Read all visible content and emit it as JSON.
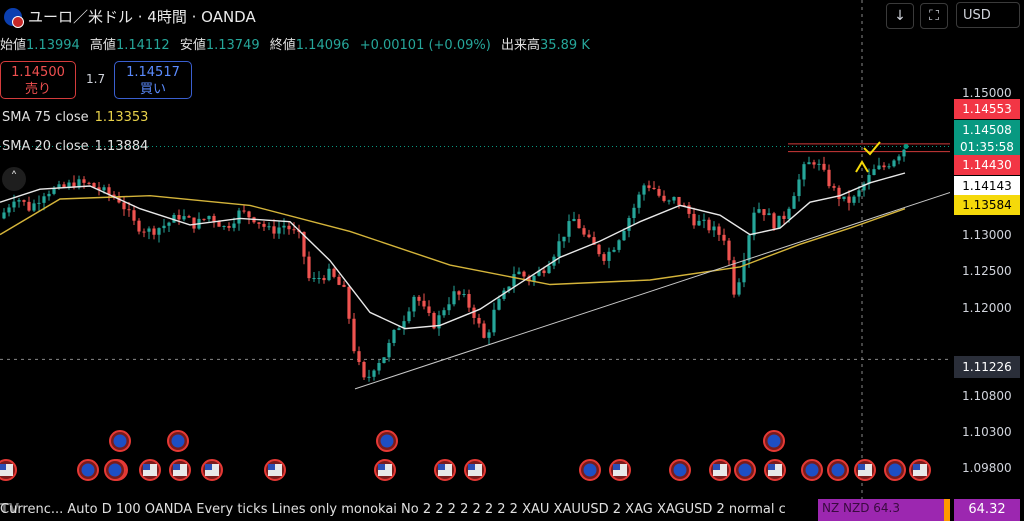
{
  "header": {
    "title": "ユーロ／米ドル · 4時間 · OANDA",
    "ohlc": [
      {
        "label": "始値",
        "value": "1.13994"
      },
      {
        "label": "高値",
        "value": "1.14112"
      },
      {
        "label": "安値",
        "value": "1.13749"
      },
      {
        "label": "終値",
        "value": "1.14096"
      }
    ],
    "change": "+0.00101 (+0.09%)",
    "volume_label": "出来高",
    "volume_value": "35.89 K"
  },
  "trade": {
    "sell_price": "1.14500",
    "sell_label": "売り",
    "spread": "1.7",
    "buy_price": "1.14517",
    "buy_label": "買い"
  },
  "indicators": {
    "sma75_label": "SMA 75 close",
    "sma75_value": "1.13353",
    "sma20_label": "SMA 20 close",
    "sma20_value": "1.13884"
  },
  "toolbar": {
    "down_icon": "arrow-down-icon",
    "fullscreen_icon": "fullscreen-icon",
    "currency": "USD"
  },
  "price_axis": {
    "ticks": [
      "1.15000",
      "1.13000",
      "1.12500",
      "1.12000",
      "1.10800",
      "1.10300",
      "1.09800"
    ],
    "tags": [
      {
        "text": "1.14553",
        "bg": "#f23645",
        "fg": "#ffffff"
      },
      {
        "text": "1.14508",
        "bg": "#089981",
        "fg": "#ffffff"
      },
      {
        "text": "01:35:58",
        "bg": "#089981",
        "fg": "#ffffff"
      },
      {
        "text": "1.14430",
        "bg": "#f23645",
        "fg": "#ffffff"
      },
      {
        "text": "1.14143",
        "bg": "#ffffff",
        "fg": "#000000"
      },
      {
        "text": "1.13584",
        "bg": "#f5d90a",
        "fg": "#000000"
      },
      {
        "text": "1.11226",
        "bg": "#2a2e39",
        "fg": "#ffffff"
      }
    ]
  },
  "bottom_bar": {
    "logo": "TV",
    "text": "Currenc...   Auto D 100 OANDA Every ticks Lines only monokai No 2 2 2 2 2 2 2 2 XAU XAUUSD 2 XAG XAGUSD 2 normal c",
    "overlay_text": "NZ  NZD   64.3",
    "last_value": "64.32"
  },
  "colors": {
    "up": "#26a69a",
    "down": "#ef5350",
    "sma75": "#d4b43a",
    "sma20": "#e8e8e8",
    "trendline": "#c8c8c8",
    "background": "#000000"
  },
  "chart_data": {
    "type": "candlestick",
    "title": "ユーロ／米ドル · 4時間 · OANDA",
    "ylim": [
      1.0955,
      1.1535
    ],
    "y_ticks": [
      1.15,
      1.13,
      1.125,
      1.12,
      1.108,
      1.103,
      1.098
    ],
    "price_path": [
      [
        0,
        1.134
      ],
      [
        15,
        1.1375
      ],
      [
        30,
        1.1355
      ],
      [
        45,
        1.1382
      ],
      [
        60,
        1.1385
      ],
      [
        75,
        1.1395
      ],
      [
        90,
        1.1392
      ],
      [
        105,
        1.138
      ],
      [
        120,
        1.1368
      ],
      [
        135,
        1.133
      ],
      [
        150,
        1.132
      ],
      [
        165,
        1.133
      ],
      [
        180,
        1.1345
      ],
      [
        195,
        1.133
      ],
      [
        210,
        1.1345
      ],
      [
        225,
        1.1325
      ],
      [
        240,
        1.135
      ],
      [
        255,
        1.134
      ],
      [
        270,
        1.132
      ],
      [
        285,
        1.133
      ],
      [
        300,
        1.131
      ],
      [
        310,
        1.124
      ],
      [
        320,
        1.125
      ],
      [
        330,
        1.1255
      ],
      [
        345,
        1.1225
      ],
      [
        355,
        1.113
      ],
      [
        365,
        1.1085
      ],
      [
        375,
        1.1115
      ],
      [
        385,
        1.113
      ],
      [
        395,
        1.1165
      ],
      [
        405,
        1.119
      ],
      [
        415,
        1.1225
      ],
      [
        425,
        1.1195
      ],
      [
        435,
        1.1175
      ],
      [
        445,
        1.1205
      ],
      [
        455,
        1.1225
      ],
      [
        465,
        1.1215
      ],
      [
        475,
        1.119
      ],
      [
        485,
        1.115
      ],
      [
        495,
        1.12
      ],
      [
        505,
        1.1225
      ],
      [
        515,
        1.126
      ],
      [
        530,
        1.1245
      ],
      [
        545,
        1.1265
      ],
      [
        555,
        1.129
      ],
      [
        565,
        1.132
      ],
      [
        575,
        1.134
      ],
      [
        585,
        1.131
      ],
      [
        595,
        1.1295
      ],
      [
        605,
        1.128
      ],
      [
        615,
        1.13
      ],
      [
        625,
        1.133
      ],
      [
        635,
        1.136
      ],
      [
        645,
        1.1395
      ],
      [
        655,
        1.1385
      ],
      [
        665,
        1.136
      ],
      [
        675,
        1.137
      ],
      [
        685,
        1.1355
      ],
      [
        695,
        1.1335
      ],
      [
        705,
        1.133
      ],
      [
        715,
        1.132
      ],
      [
        725,
        1.131
      ],
      [
        735,
        1.122
      ],
      [
        745,
        1.129
      ],
      [
        755,
        1.136
      ],
      [
        765,
        1.135
      ],
      [
        775,
        1.133
      ],
      [
        785,
        1.1345
      ],
      [
        795,
        1.1385
      ],
      [
        805,
        1.142
      ],
      [
        815,
        1.143
      ],
      [
        825,
        1.1405
      ],
      [
        835,
        1.138
      ],
      [
        845,
        1.1365
      ],
      [
        855,
        1.137
      ],
      [
        865,
        1.1395
      ],
      [
        875,
        1.1415
      ],
      [
        885,
        1.142
      ],
      [
        895,
        1.1435
      ],
      [
        905,
        1.145
      ]
    ],
    "series": [
      {
        "name": "SMA 75 close",
        "points": [
          [
            0,
            1.1315
          ],
          [
            60,
            1.137
          ],
          [
            150,
            1.1375
          ],
          [
            250,
            1.136
          ],
          [
            350,
            1.132
          ],
          [
            450,
            1.1268
          ],
          [
            550,
            1.1238
          ],
          [
            650,
            1.1245
          ],
          [
            740,
            1.1265
          ],
          [
            800,
            1.13
          ],
          [
            850,
            1.1325
          ],
          [
            905,
            1.1355
          ]
        ]
      },
      {
        "name": "SMA 20 close",
        "points": [
          [
            0,
            1.1365
          ],
          [
            40,
            1.1385
          ],
          [
            90,
            1.139
          ],
          [
            140,
            1.1355
          ],
          [
            190,
            1.133
          ],
          [
            240,
            1.134
          ],
          [
            290,
            1.1335
          ],
          [
            330,
            1.1275
          ],
          [
            370,
            1.1195
          ],
          [
            405,
            1.117
          ],
          [
            440,
            1.1175
          ],
          [
            480,
            1.12
          ],
          [
            520,
            1.124
          ],
          [
            560,
            1.128
          ],
          [
            600,
            1.1305
          ],
          [
            640,
            1.1335
          ],
          [
            680,
            1.136
          ],
          [
            720,
            1.1345
          ],
          [
            750,
            1.1315
          ],
          [
            780,
            1.1325
          ],
          [
            810,
            1.1365
          ],
          [
            840,
            1.1375
          ],
          [
            870,
            1.1395
          ],
          [
            905,
            1.141
          ]
        ]
      },
      {
        "name": "trendline",
        "points": [
          [
            355,
            1.1077
          ],
          [
            960,
            1.1385
          ]
        ]
      }
    ],
    "lines": [
      {
        "name": "resistance-high",
        "y": 1.1455
      },
      {
        "name": "resistance-low",
        "y": 1.1443
      },
      {
        "name": "current",
        "y": 1.1451
      },
      {
        "name": "crosshair",
        "y": 1.11226
      }
    ],
    "markers": {
      "eu": [
        120,
        178,
        387,
        774,
        117,
        88,
        115,
        590,
        680,
        745,
        812,
        838,
        895
      ],
      "us": [
        6,
        150,
        180,
        212,
        275,
        385,
        445,
        475,
        620,
        720,
        775,
        865,
        920
      ]
    }
  }
}
